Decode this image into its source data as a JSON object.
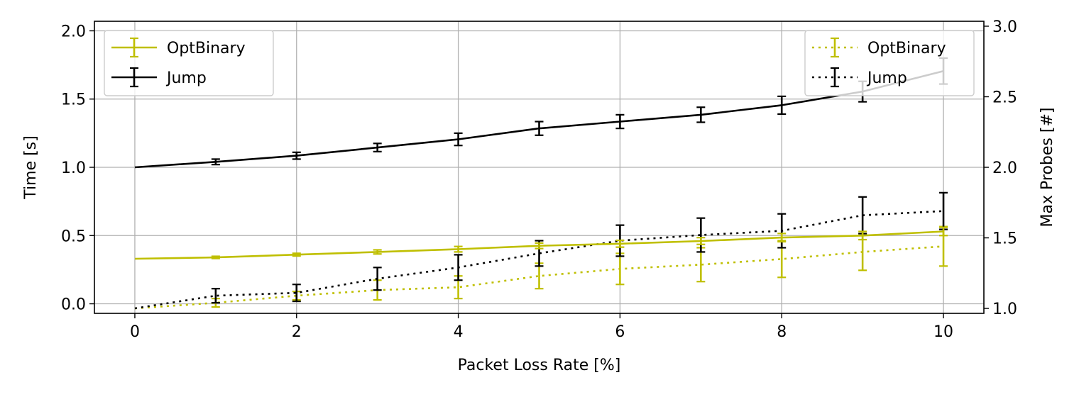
{
  "chart_data": {
    "type": "line",
    "xlabel": "Packet Loss Rate [%]",
    "ylabel": "Time [s]",
    "y2label": "Max Probes [#]",
    "xlim": [
      -0.5,
      10.5
    ],
    "ylim": [
      -0.07,
      2.07
    ],
    "y2lim": [
      0.965,
      3.035
    ],
    "grid": true,
    "x_ticks": [
      0,
      2,
      4,
      6,
      8,
      10
    ],
    "y_ticks": [
      0.0,
      0.5,
      1.0,
      1.5,
      2.0
    ],
    "y2_ticks": [
      1.0,
      1.5,
      2.0,
      2.5,
      3.0
    ],
    "x_tick_labels": [
      "0",
      "2",
      "4",
      "6",
      "8",
      "10"
    ],
    "y_tick_labels": [
      "0.0",
      "0.5",
      "1.0",
      "1.5",
      "2.0"
    ],
    "y2_tick_labels": [
      "1.0",
      "1.5",
      "2.0",
      "2.5",
      "3.0"
    ],
    "legend_left_placement": "upper-left",
    "legend_right_placement": "upper-right",
    "series": [
      {
        "name": "OptBinary",
        "axis": "left",
        "style": "solid",
        "color": "#bfbf00",
        "x": [
          0,
          1,
          2,
          3,
          4,
          5,
          6,
          7,
          8,
          9,
          10
        ],
        "y": [
          0.33,
          0.34,
          0.36,
          0.38,
          0.4,
          0.425,
          0.44,
          0.46,
          0.485,
          0.5,
          0.53
        ],
        "err": [
          0.0,
          0.008,
          0.01,
          0.015,
          0.02,
          0.02,
          0.025,
          0.025,
          0.03,
          0.03,
          0.03
        ]
      },
      {
        "name": "Jump",
        "axis": "left",
        "style": "solid",
        "color": "#000000",
        "x": [
          0,
          1,
          2,
          3,
          4,
          5,
          6,
          7,
          8,
          9,
          10
        ],
        "y": [
          1.0,
          1.04,
          1.085,
          1.145,
          1.205,
          1.285,
          1.335,
          1.385,
          1.455,
          1.555,
          1.705
        ],
        "err": [
          0.0,
          0.02,
          0.025,
          0.03,
          0.045,
          0.05,
          0.05,
          0.055,
          0.065,
          0.075,
          0.095
        ]
      },
      {
        "name": "OptBinary",
        "axis": "right",
        "style": "dotted",
        "color": "#bfbf00",
        "x": [
          0,
          1,
          2,
          3,
          4,
          5,
          6,
          7,
          8,
          9,
          10
        ],
        "y": [
          1.0,
          1.04,
          1.09,
          1.13,
          1.15,
          1.23,
          1.28,
          1.31,
          1.35,
          1.4,
          1.44
        ],
        "err": [
          0.0,
          0.03,
          0.03,
          0.07,
          0.08,
          0.09,
          0.11,
          0.12,
          0.13,
          0.13,
          0.14
        ]
      },
      {
        "name": "Jump",
        "axis": "right",
        "style": "dotted",
        "color": "#000000",
        "x": [
          0,
          1,
          2,
          3,
          4,
          5,
          6,
          7,
          8,
          9,
          10
        ],
        "y": [
          1.0,
          1.09,
          1.11,
          1.21,
          1.29,
          1.39,
          1.48,
          1.52,
          1.55,
          1.66,
          1.69
        ],
        "err": [
          0.0,
          0.05,
          0.06,
          0.08,
          0.09,
          0.09,
          0.11,
          0.12,
          0.12,
          0.13,
          0.13
        ]
      }
    ]
  }
}
